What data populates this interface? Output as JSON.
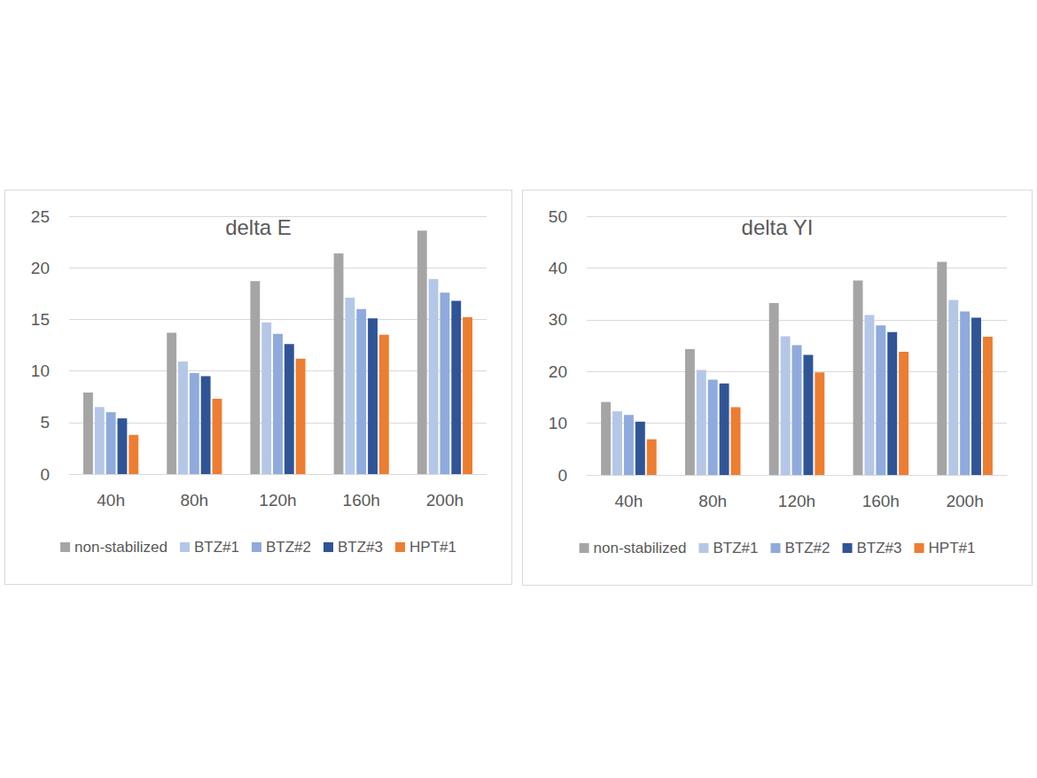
{
  "chart_data": [
    {
      "type": "bar",
      "title": "delta E",
      "categories": [
        "40h",
        "80h",
        "120h",
        "160h",
        "200h"
      ],
      "series": [
        {
          "name": "non-stabilized",
          "color": "#a5a5a5",
          "values": [
            7.9,
            13.7,
            18.7,
            21.4,
            23.6
          ]
        },
        {
          "name": "BTZ#1",
          "color": "#b4c7e7",
          "values": [
            6.5,
            10.9,
            14.7,
            17.1,
            18.9
          ]
        },
        {
          "name": "BTZ#2",
          "color": "#8faadc",
          "values": [
            6.0,
            9.8,
            13.6,
            16.0,
            17.6
          ]
        },
        {
          "name": "BTZ#3",
          "color": "#2f5597",
          "values": [
            5.4,
            9.5,
            12.6,
            15.1,
            16.8
          ]
        },
        {
          "name": "HPT#1",
          "color": "#ed7d31",
          "values": [
            3.8,
            7.3,
            11.2,
            13.5,
            15.2
          ]
        }
      ],
      "ylim": [
        0,
        25
      ],
      "yticks": [
        0,
        5,
        10,
        15,
        20,
        25
      ],
      "grid": true,
      "legend": "bottom"
    },
    {
      "type": "bar",
      "title": "delta YI",
      "categories": [
        "40h",
        "80h",
        "120h",
        "160h",
        "200h"
      ],
      "series": [
        {
          "name": "non-stabilized",
          "color": "#a5a5a5",
          "values": [
            14.1,
            24.3,
            33.2,
            37.6,
            41.2
          ]
        },
        {
          "name": "BTZ#1",
          "color": "#b4c7e7",
          "values": [
            12.3,
            20.3,
            26.8,
            30.9,
            33.8
          ]
        },
        {
          "name": "BTZ#2",
          "color": "#8faadc",
          "values": [
            11.6,
            18.4,
            25.1,
            28.9,
            31.6
          ]
        },
        {
          "name": "BTZ#3",
          "color": "#2f5597",
          "values": [
            10.3,
            17.7,
            23.2,
            27.6,
            30.4
          ]
        },
        {
          "name": "HPT#1",
          "color": "#ed7d31",
          "values": [
            6.9,
            13.1,
            19.8,
            23.8,
            26.7
          ]
        }
      ],
      "ylim": [
        0,
        50
      ],
      "yticks": [
        0,
        10,
        20,
        30,
        40,
        50
      ],
      "grid": true,
      "legend": "bottom"
    }
  ]
}
